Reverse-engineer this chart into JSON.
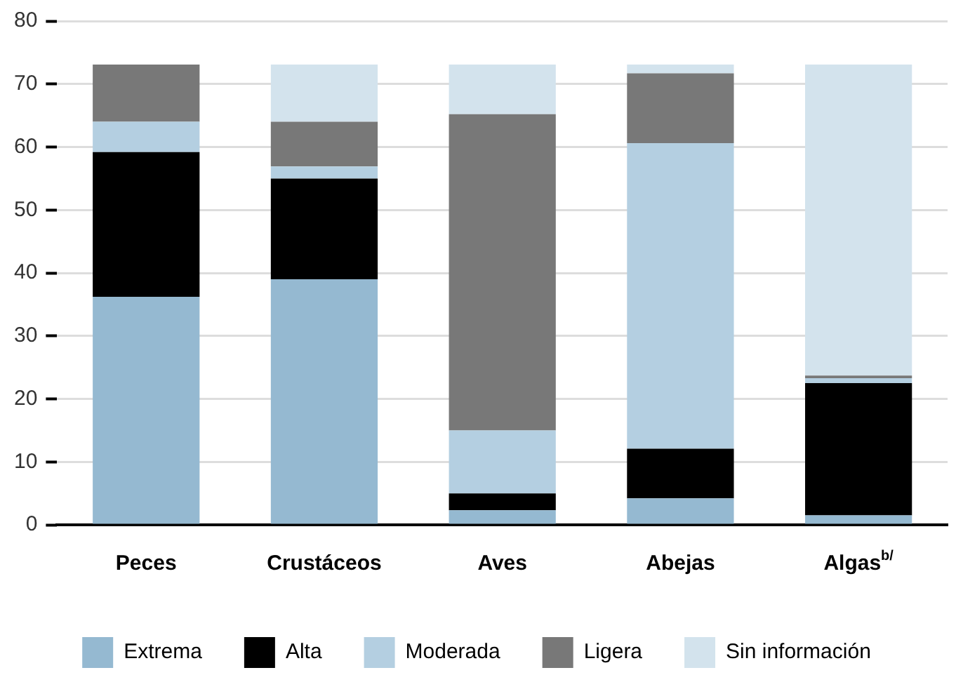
{
  "chart_data": {
    "type": "bar",
    "stacked": true,
    "categories": [
      "Peces",
      "Crustáceos",
      "Aves",
      "Abejas",
      "Algas$^{b/}$"
    ],
    "series": [
      {
        "name": "Extrema",
        "color": "#95b9d1",
        "values": [
          36.2,
          39,
          2.3,
          4.2,
          1.5
        ]
      },
      {
        "name": "Alta",
        "color": "#000000",
        "values": [
          23,
          16,
          2.7,
          7.9,
          21
        ]
      },
      {
        "name": "Moderada",
        "color": "#b4cfe1",
        "values": [
          4.8,
          1.9,
          10,
          48.5,
          0.8
        ]
      },
      {
        "name": "Ligera",
        "color": "#787878",
        "values": [
          9.1,
          7.1,
          50.2,
          11.1,
          0.4
        ]
      },
      {
        "name": "Sin información",
        "color": "#d3e3ed",
        "values": [
          0,
          9.1,
          7.9,
          1.4,
          49.4
        ]
      }
    ],
    "ylim": [
      0,
      80
    ],
    "yticks": [
      0,
      10,
      20,
      30,
      40,
      50,
      60,
      70,
      80
    ],
    "grid": "y",
    "legend": "bottom"
  }
}
